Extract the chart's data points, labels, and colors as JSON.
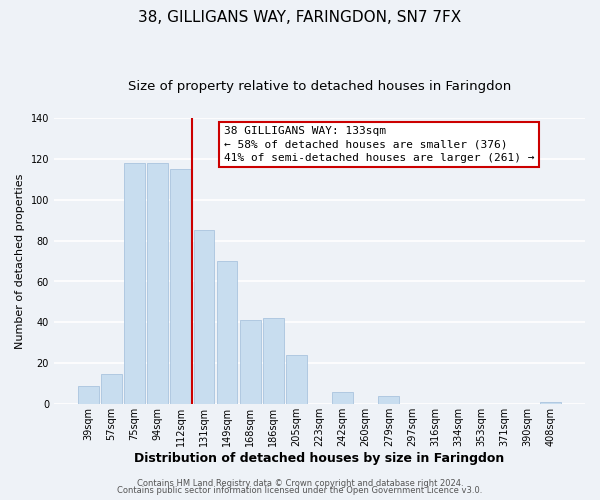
{
  "title": "38, GILLIGANS WAY, FARINGDON, SN7 7FX",
  "subtitle": "Size of property relative to detached houses in Faringdon",
  "xlabel": "Distribution of detached houses by size in Faringdon",
  "ylabel": "Number of detached properties",
  "bar_labels": [
    "39sqm",
    "57sqm",
    "75sqm",
    "94sqm",
    "112sqm",
    "131sqm",
    "149sqm",
    "168sqm",
    "186sqm",
    "205sqm",
    "223sqm",
    "242sqm",
    "260sqm",
    "279sqm",
    "297sqm",
    "316sqm",
    "334sqm",
    "353sqm",
    "371sqm",
    "390sqm",
    "408sqm"
  ],
  "bar_values": [
    9,
    15,
    118,
    118,
    115,
    85,
    70,
    41,
    42,
    24,
    0,
    6,
    0,
    4,
    0,
    0,
    0,
    0,
    0,
    0,
    1
  ],
  "bar_color": "#c8ddef",
  "bar_edge_color": "#aac4de",
  "highlight_line_color": "#cc0000",
  "annotation_title": "38 GILLIGANS WAY: 133sqm",
  "annotation_line1": "← 58% of detached houses are smaller (376)",
  "annotation_line2": "41% of semi-detached houses are larger (261) →",
  "annotation_box_color": "#ffffff",
  "annotation_box_edge": "#cc0000",
  "ylim": [
    0,
    140
  ],
  "yticks": [
    0,
    20,
    40,
    60,
    80,
    100,
    120,
    140
  ],
  "footer1": "Contains HM Land Registry data © Crown copyright and database right 2024.",
  "footer2": "Contains public sector information licensed under the Open Government Licence v3.0.",
  "bg_color": "#eef2f7",
  "grid_color": "#ffffff",
  "title_fontsize": 11,
  "subtitle_fontsize": 9.5,
  "xlabel_fontsize": 9,
  "ylabel_fontsize": 8,
  "tick_fontsize": 7,
  "annotation_fontsize": 8,
  "footer_fontsize": 6
}
